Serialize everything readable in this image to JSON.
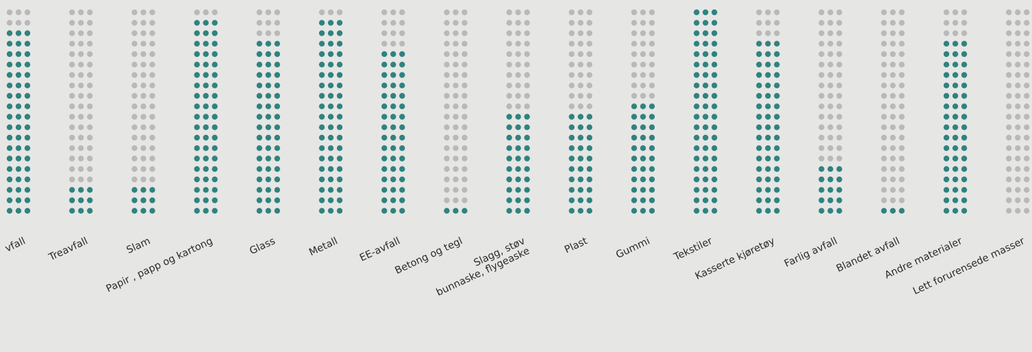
{
  "chart_data": {
    "type": "dot-matrix",
    "title": "",
    "xlabel": "",
    "ylabel": "",
    "dots_per_column": 60,
    "grid": false,
    "colors": {
      "filled": "#2f837e",
      "empty": "#b9b9b9",
      "background": "#e6e6e5"
    },
    "categories": [
      "Våtorganisk avfall",
      "Treavfall",
      "Slam",
      "Papir , papp og kartong",
      "Glass",
      "Metall",
      "EE-avfall",
      "Betong og tegl",
      "Slagg, støv bunnaske, flygeaske",
      "Plast",
      "Gummi",
      "Tekstiler",
      "Kasserte kjøretøy",
      "Farlig avfall",
      "Blandet avfall",
      "Andre materialer",
      "Lett forurensede masser"
    ],
    "label_lines": [
      [
        "vfall"
      ],
      [
        "Treavfall"
      ],
      [
        "Slam"
      ],
      [
        "Papir , papp og kartong"
      ],
      [
        "Glass"
      ],
      [
        "Metall"
      ],
      [
        "EE-avfall"
      ],
      [
        "Betong og tegl"
      ],
      [
        "Slagg, støv",
        "bunnaske, flygeaske"
      ],
      [
        "Plast"
      ],
      [
        "Gummi"
      ],
      [
        "Tekstiler"
      ],
      [
        "Kasserte kjøretøy"
      ],
      [
        "Farlig avfall"
      ],
      [
        "Blandet avfall"
      ],
      [
        "Andre materialer"
      ],
      [
        "Lett forurensede masser"
      ]
    ],
    "values": [
      54,
      9,
      9,
      57,
      51,
      57,
      48,
      3,
      30,
      30,
      33,
      60,
      51,
      15,
      3,
      51,
      0
    ]
  }
}
